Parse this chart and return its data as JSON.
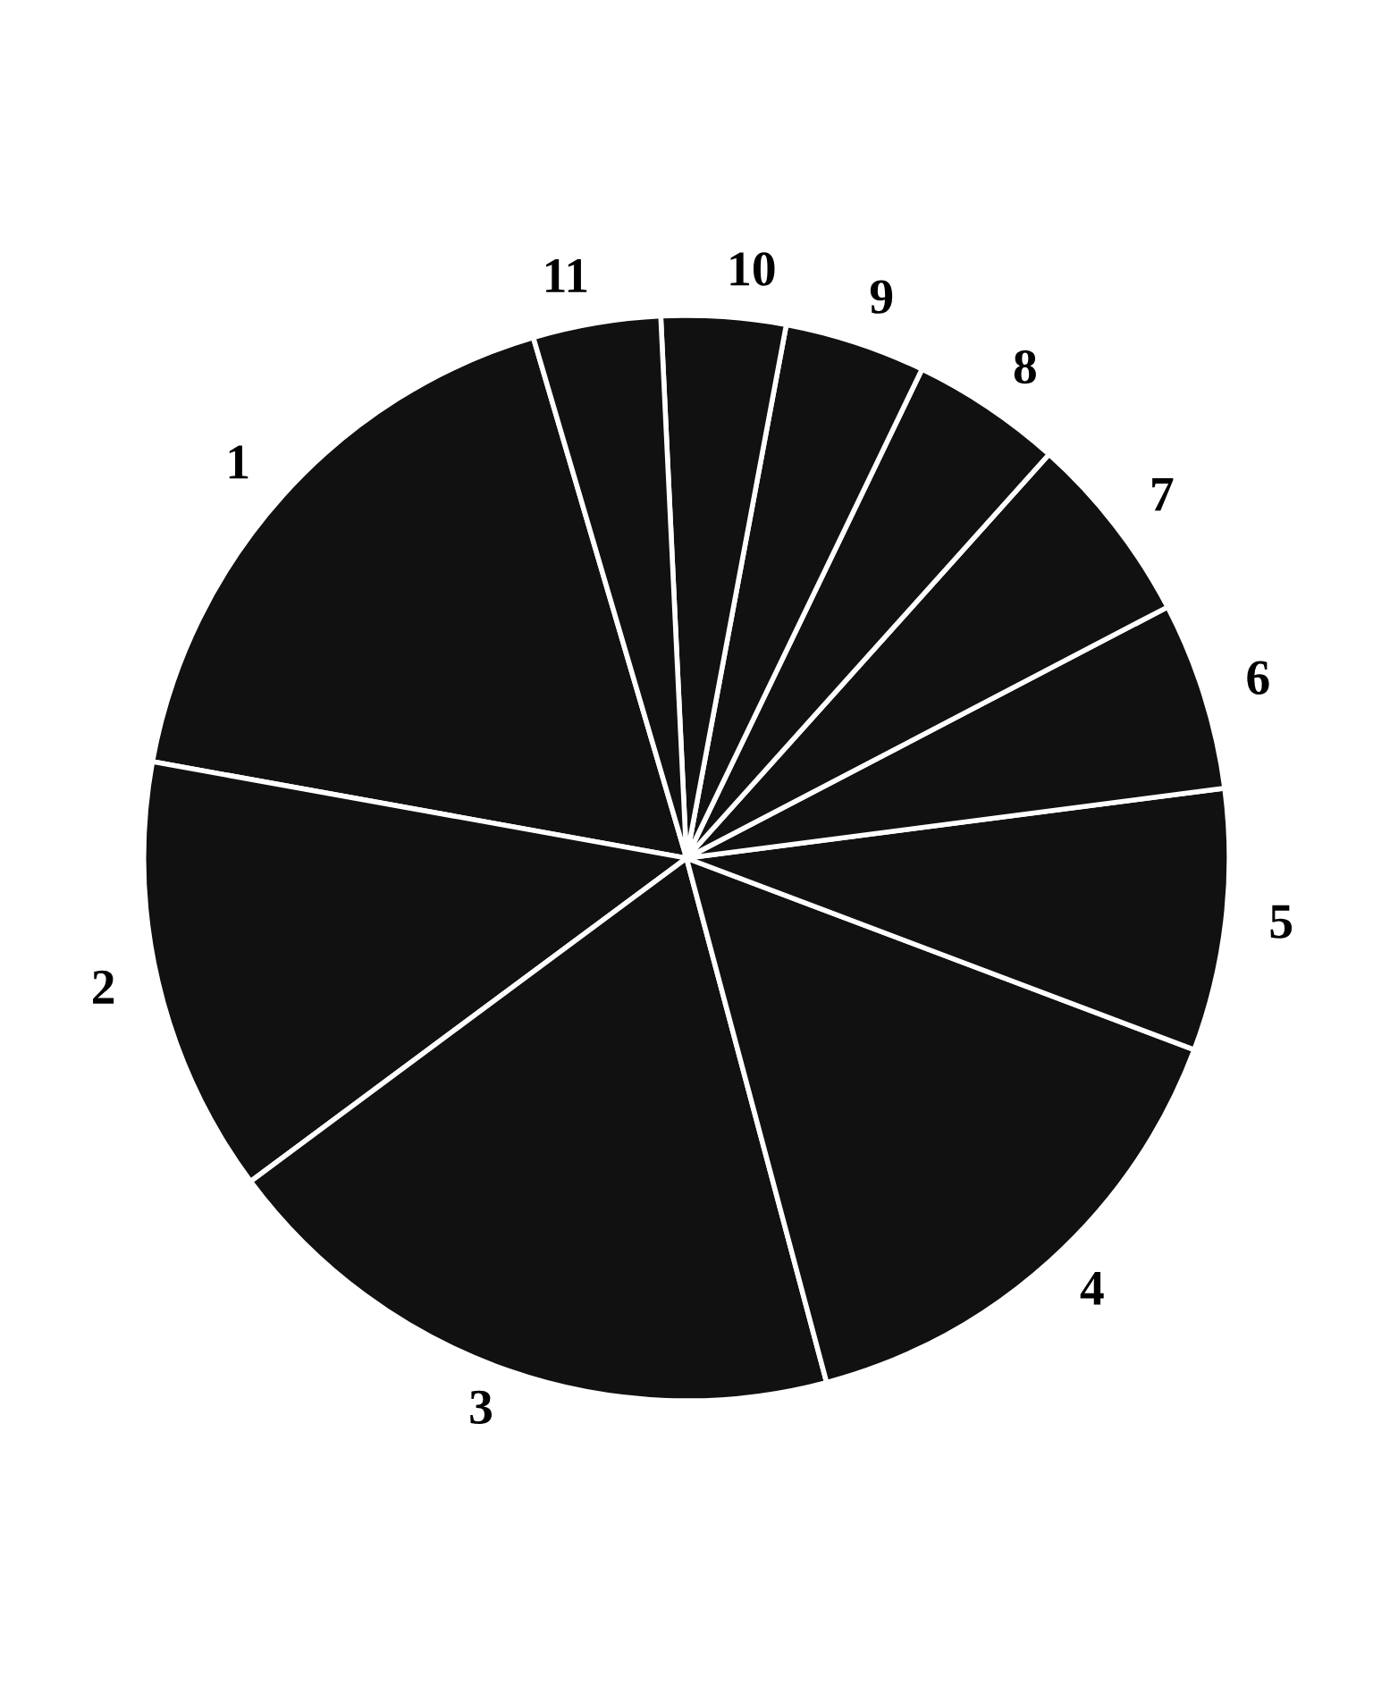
{
  "chart_data": {
    "type": "pie",
    "categories": [
      "1",
      "2",
      "3",
      "4",
      "5",
      "6",
      "7",
      "8",
      "9",
      "10",
      "11"
    ],
    "values": [
      17.6,
      13.0,
      19.0,
      15.1,
      7.8,
      5.6,
      5.7,
      4.5,
      4.2,
      3.7,
      3.8
    ],
    "colors": [
      "#111111",
      "#111111",
      "#111111",
      "#111111",
      "#111111",
      "#111111",
      "#111111",
      "#111111",
      "#111111",
      "#111111",
      "#111111"
    ],
    "legend": false
  }
}
